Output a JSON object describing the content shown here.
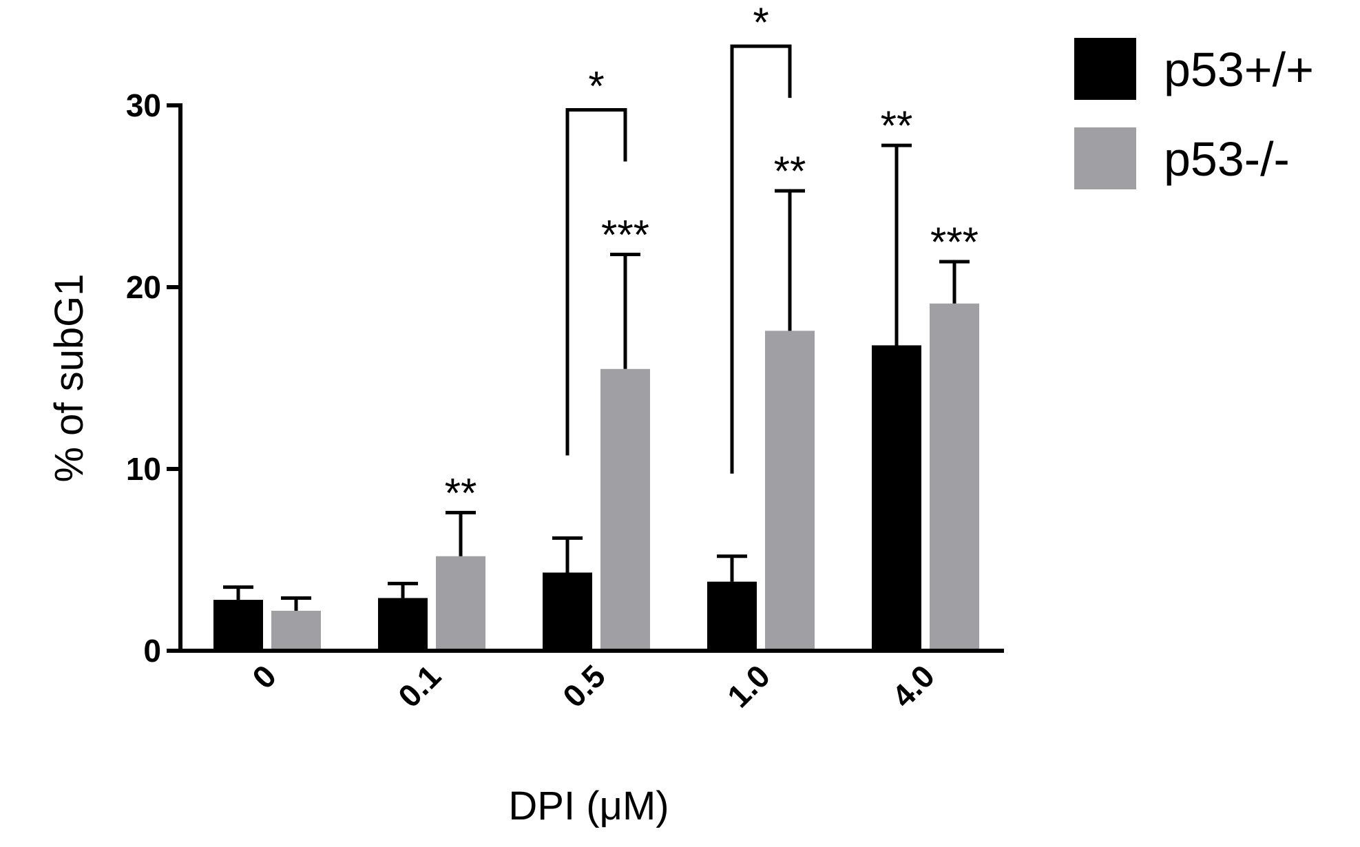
{
  "chart_data": {
    "type": "bar",
    "title": "",
    "xlabel": "DPI (μM)",
    "ylabel": "% of subG1",
    "categories": [
      "0",
      "0.1",
      "0.5",
      "1.0",
      "4.0"
    ],
    "ylim": [
      0,
      30
    ],
    "yticks": [
      "0",
      "10",
      "20",
      "30"
    ],
    "grid": false,
    "legend_position": "top-right",
    "series": [
      {
        "name": "p53+/+",
        "color": "#000000",
        "values": [
          2.8,
          2.9,
          4.3,
          3.8,
          16.8
        ],
        "errors": [
          0.7,
          0.8,
          1.9,
          1.4,
          11.0
        ]
      },
      {
        "name": "p53-/-",
        "color": "#a0a0a4",
        "values": [
          2.2,
          5.2,
          15.5,
          17.6,
          19.1
        ],
        "errors": [
          0.7,
          2.4,
          6.3,
          7.7,
          2.3
        ]
      }
    ],
    "significance": {
      "above_bars": [
        {
          "series": 1,
          "category": 1,
          "label": "**"
        },
        {
          "series": 1,
          "category": 2,
          "label": "***"
        },
        {
          "series": 1,
          "category": 3,
          "label": "**"
        },
        {
          "series": 0,
          "category": 4,
          "label": "**"
        },
        {
          "series": 1,
          "category": 4,
          "label": "***"
        }
      ],
      "brackets": [
        {
          "category": 2,
          "label": "*"
        },
        {
          "category": 3,
          "label": "*"
        }
      ]
    }
  }
}
